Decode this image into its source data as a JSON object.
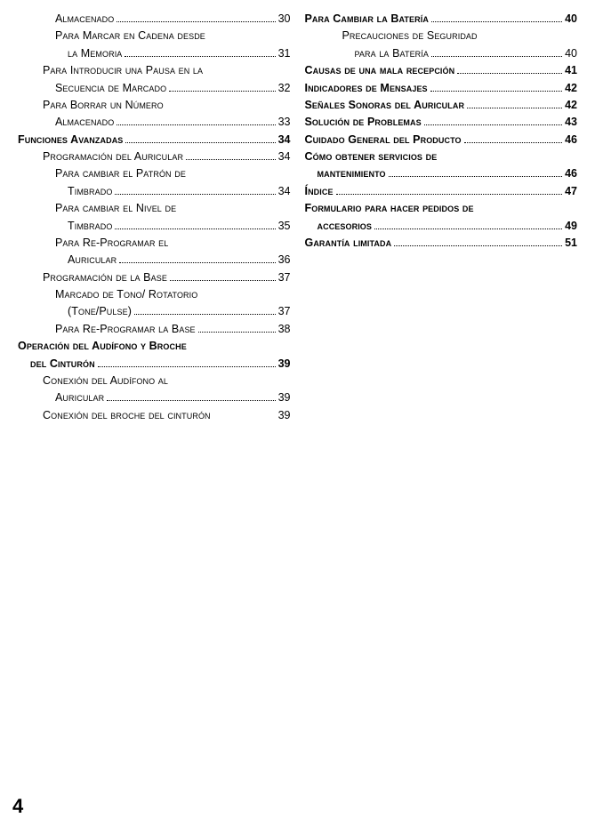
{
  "pageNumber": "4",
  "left": [
    {
      "indent": "i3",
      "bold": false,
      "text": "Almacenado",
      "page": "30",
      "pageBold": false,
      "dots": true
    },
    {
      "indent": "i3",
      "bold": false,
      "text": "Para Marcar en Cadena desde",
      "page": "",
      "pageBold": false,
      "dots": false
    },
    {
      "indent": "i4",
      "bold": false,
      "text": "la Memoria",
      "page": "31",
      "pageBold": false,
      "dots": true
    },
    {
      "indent": "i2",
      "bold": false,
      "text": "Para Introducir una Pausa en la",
      "page": "",
      "pageBold": false,
      "dots": false
    },
    {
      "indent": "i3",
      "bold": false,
      "text": "Secuencia de Marcado",
      "page": "32",
      "pageBold": false,
      "dots": true
    },
    {
      "indent": "i2",
      "bold": false,
      "text": "Para Borrar un Número",
      "page": "",
      "pageBold": false,
      "dots": false
    },
    {
      "indent": "i3",
      "bold": false,
      "text": "Almacenado",
      "page": "33",
      "pageBold": false,
      "dots": true
    },
    {
      "indent": "",
      "bold": true,
      "text": "Funciones Avanzadas",
      "page": "34",
      "pageBold": true,
      "dots": true
    },
    {
      "indent": "i2",
      "bold": false,
      "text": "Programación del Auricular",
      "page": "34",
      "pageBold": false,
      "dots": true
    },
    {
      "indent": "i3",
      "bold": false,
      "text": "Para cambiar el Patrón de",
      "page": "",
      "pageBold": false,
      "dots": false
    },
    {
      "indent": "i4",
      "bold": false,
      "text": "Timbrado",
      "page": "34",
      "pageBold": false,
      "dots": true
    },
    {
      "indent": "i3",
      "bold": false,
      "text": "Para cambiar el Nivel de",
      "page": "",
      "pageBold": false,
      "dots": false
    },
    {
      "indent": "i4",
      "bold": false,
      "text": "Timbrado",
      "page": "35",
      "pageBold": false,
      "dots": true
    },
    {
      "indent": "i3",
      "bold": false,
      "text": "Para Re-Programar el",
      "page": "",
      "pageBold": false,
      "dots": false
    },
    {
      "indent": "i4",
      "bold": false,
      "text": "Auricular",
      "page": "36",
      "pageBold": false,
      "dots": true
    },
    {
      "indent": "i2",
      "bold": false,
      "text": "Programación de la Base",
      "page": "37",
      "pageBold": false,
      "dots": true
    },
    {
      "indent": "i3",
      "bold": false,
      "text": "Marcado de Tono/ Rotatorio",
      "page": "",
      "pageBold": false,
      "dots": false
    },
    {
      "indent": "i4",
      "bold": false,
      "text": "(Tone/Pulse)",
      "page": "37",
      "pageBold": false,
      "dots": true
    },
    {
      "indent": "i3",
      "bold": false,
      "text": "Para Re-Programar la Base",
      "page": "38",
      "pageBold": false,
      "dots": true
    },
    {
      "indent": "",
      "bold": true,
      "text": "Operación del Audífono y Broche",
      "page": "",
      "pageBold": true,
      "dots": false
    },
    {
      "indent": "i1",
      "bold": true,
      "text": "del Cinturón",
      "page": "39",
      "pageBold": true,
      "dots": true
    },
    {
      "indent": "i2",
      "bold": false,
      "text": "Conexión del Audífono al",
      "page": "",
      "pageBold": false,
      "dots": false
    },
    {
      "indent": "i3",
      "bold": false,
      "text": "Auricular",
      "page": "39",
      "pageBold": false,
      "dots": true
    },
    {
      "indent": "i2",
      "bold": false,
      "text": "Conexión del broche del cinturón",
      "page": "39",
      "pageBold": false,
      "dots": false
    }
  ],
  "right": [
    {
      "indent": "",
      "bold": true,
      "text": "Para Cambiar la Batería",
      "page": "40",
      "pageBold": true,
      "dots": true
    },
    {
      "indent": "i3",
      "bold": false,
      "text": "Precauciones de Seguridad",
      "page": "",
      "pageBold": false,
      "dots": false
    },
    {
      "indent": "i4",
      "bold": false,
      "text": "para la Batería",
      "page": "40",
      "pageBold": false,
      "dots": true
    },
    {
      "indent": "",
      "bold": true,
      "text": "Causas de una mala recepción",
      "page": "41",
      "pageBold": true,
      "dots": true
    },
    {
      "indent": "",
      "bold": true,
      "text": "Indicadores de Mensajes",
      "page": "42",
      "pageBold": true,
      "dots": true
    },
    {
      "indent": "",
      "bold": true,
      "text": "Señales Sonoras del Auricular",
      "page": "42",
      "pageBold": true,
      "dots": true
    },
    {
      "indent": "",
      "bold": true,
      "text": "Solución de Problemas",
      "page": "43",
      "pageBold": true,
      "dots": true
    },
    {
      "indent": "",
      "bold": true,
      "text": "Cuidado General del Producto",
      "page": "46",
      "pageBold": true,
      "dots": true
    },
    {
      "indent": "",
      "bold": true,
      "text": "Cómo obtener servicios de",
      "page": "",
      "pageBold": true,
      "dots": false
    },
    {
      "indent": "i1",
      "bold": true,
      "text": "mantenimiento",
      "page": "46",
      "pageBold": true,
      "dots": true
    },
    {
      "indent": "",
      "bold": true,
      "text": "Índice",
      "page": "47",
      "pageBold": true,
      "dots": true
    },
    {
      "indent": "",
      "bold": true,
      "text": "Formulario para hacer pedidos de",
      "page": "",
      "pageBold": true,
      "dots": false
    },
    {
      "indent": "i1",
      "bold": true,
      "text": "accesorios",
      "page": "49",
      "pageBold": true,
      "dots": true
    },
    {
      "indent": "",
      "bold": true,
      "text": "Garantía limitada",
      "page": "51",
      "pageBold": true,
      "dots": true
    }
  ]
}
